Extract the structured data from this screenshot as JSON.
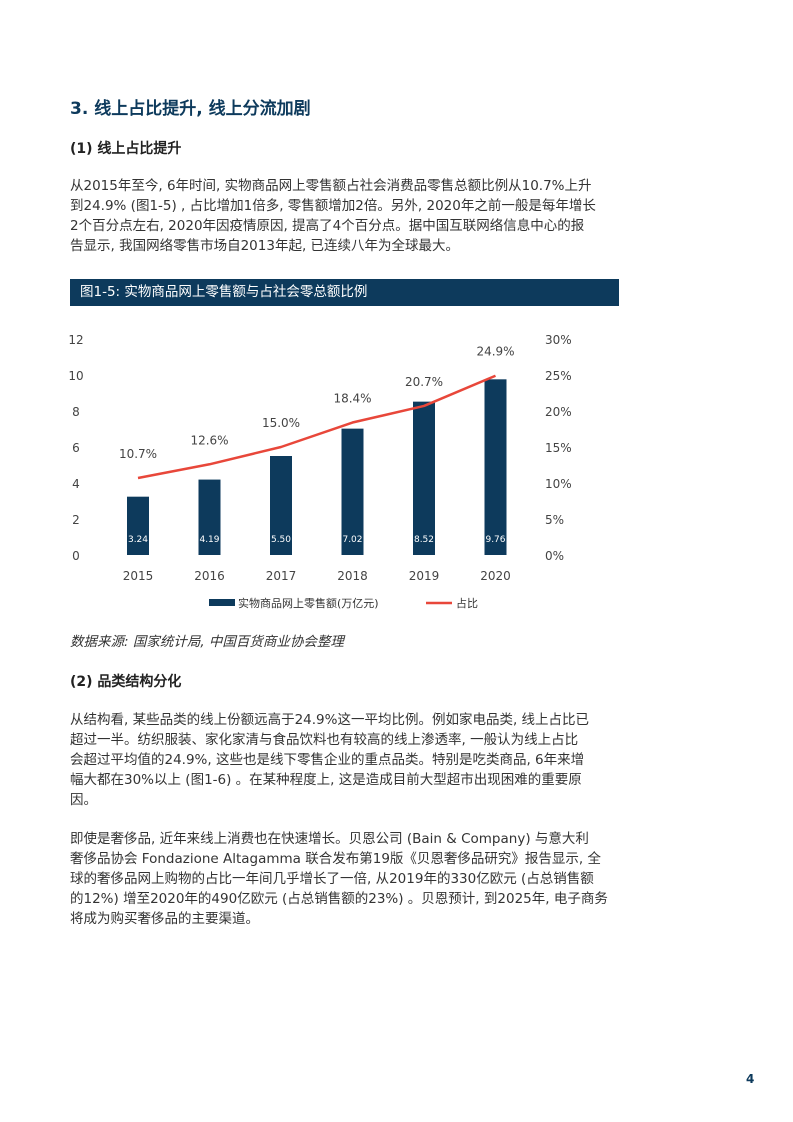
{
  "section_title": "3. 线上占比提升, 线上分流加剧",
  "sub1": {
    "heading": "(1) 线上占比提升",
    "lines": [
      "从2015年至今, 6年时间, 实物商品网上零售额占社会消费品零售总额比例从10.7%上升",
      "到24.9% (图1-5) , 占比增加1倍多, 零售额增加2倍。另外, 2020年之前一般是每年增长",
      "2个百分点左右, 2020年因疫情原因, 提高了4个百分点。据中国互联网络信息中心的报",
      "告显示, 我国网络零售市场自2013年起, 已连续八年为全球最大。"
    ]
  },
  "figure_caption": "图1-5: 实物商品网上零售额与占社会零总额比例",
  "chart_data": {
    "type": "bar+line",
    "categories": [
      "2015",
      "2016",
      "2017",
      "2018",
      "2019",
      "2020"
    ],
    "series": [
      {
        "name": "实物商品网上零售额(万亿元)",
        "type": "bar",
        "axis": "left",
        "values": [
          3.24,
          4.19,
          5.5,
          7.02,
          8.52,
          9.76
        ],
        "labels": [
          "3.24",
          "4.19",
          "5.50",
          "7.02",
          "8.52",
          "9.76"
        ],
        "color": "#0d3a5c"
      },
      {
        "name": "占比",
        "type": "line",
        "axis": "right",
        "values": [
          10.7,
          12.6,
          15.0,
          18.4,
          20.7,
          24.9
        ],
        "labels": [
          "10.7%",
          "12.6%",
          "15.0%",
          "18.4%",
          "20.7%",
          "24.9%"
        ],
        "color": "#e8473a"
      }
    ],
    "y_left": {
      "range": [
        0,
        12
      ],
      "ticks": [
        "0",
        "2",
        "4",
        "6",
        "8",
        "10",
        "12"
      ]
    },
    "y_right": {
      "range": [
        0,
        30
      ],
      "ticks": [
        "0%",
        "5%",
        "10%",
        "15%",
        "20%",
        "25%",
        "30%"
      ]
    },
    "grid": false,
    "legend": "bottom"
  },
  "source_note": "数据来源: 国家统计局, 中国百货商业协会整理",
  "sub2": {
    "heading": "(2) 品类结构分化",
    "para1": [
      "从结构看, 某些品类的线上份额远高于24.9%这一平均比例。例如家电品类, 线上占比已",
      "超过一半。纺织服装、家化家清与食品饮料也有较高的线上渗透率, 一般认为线上占比",
      "会超过平均值的24.9%, 这些也是线下零售企业的重点品类。特别是吃类商品, 6年来增",
      "幅大都在30%以上 (图1-6) 。在某种程度上, 这是造成目前大型超市出现困难的重要原",
      "因。"
    ],
    "para2": [
      "即使是奢侈品, 近年来线上消费也在快速增长。贝恩公司 (Bain & Company) 与意大利",
      "奢侈品协会 Fondazione Altagamma 联合发布第19版《贝恩奢侈品研究》报告显示, 全",
      "球的奢侈品网上购物的占比一年间几乎增长了一倍, 从2019年的330亿欧元 (占总销售额",
      "的12%) 增至2020年的490亿欧元 (占总销售额的23%) 。贝恩预计, 到2025年, 电子商务",
      "将成为购买奢侈品的主要渠道。"
    ]
  },
  "page_number": "4"
}
